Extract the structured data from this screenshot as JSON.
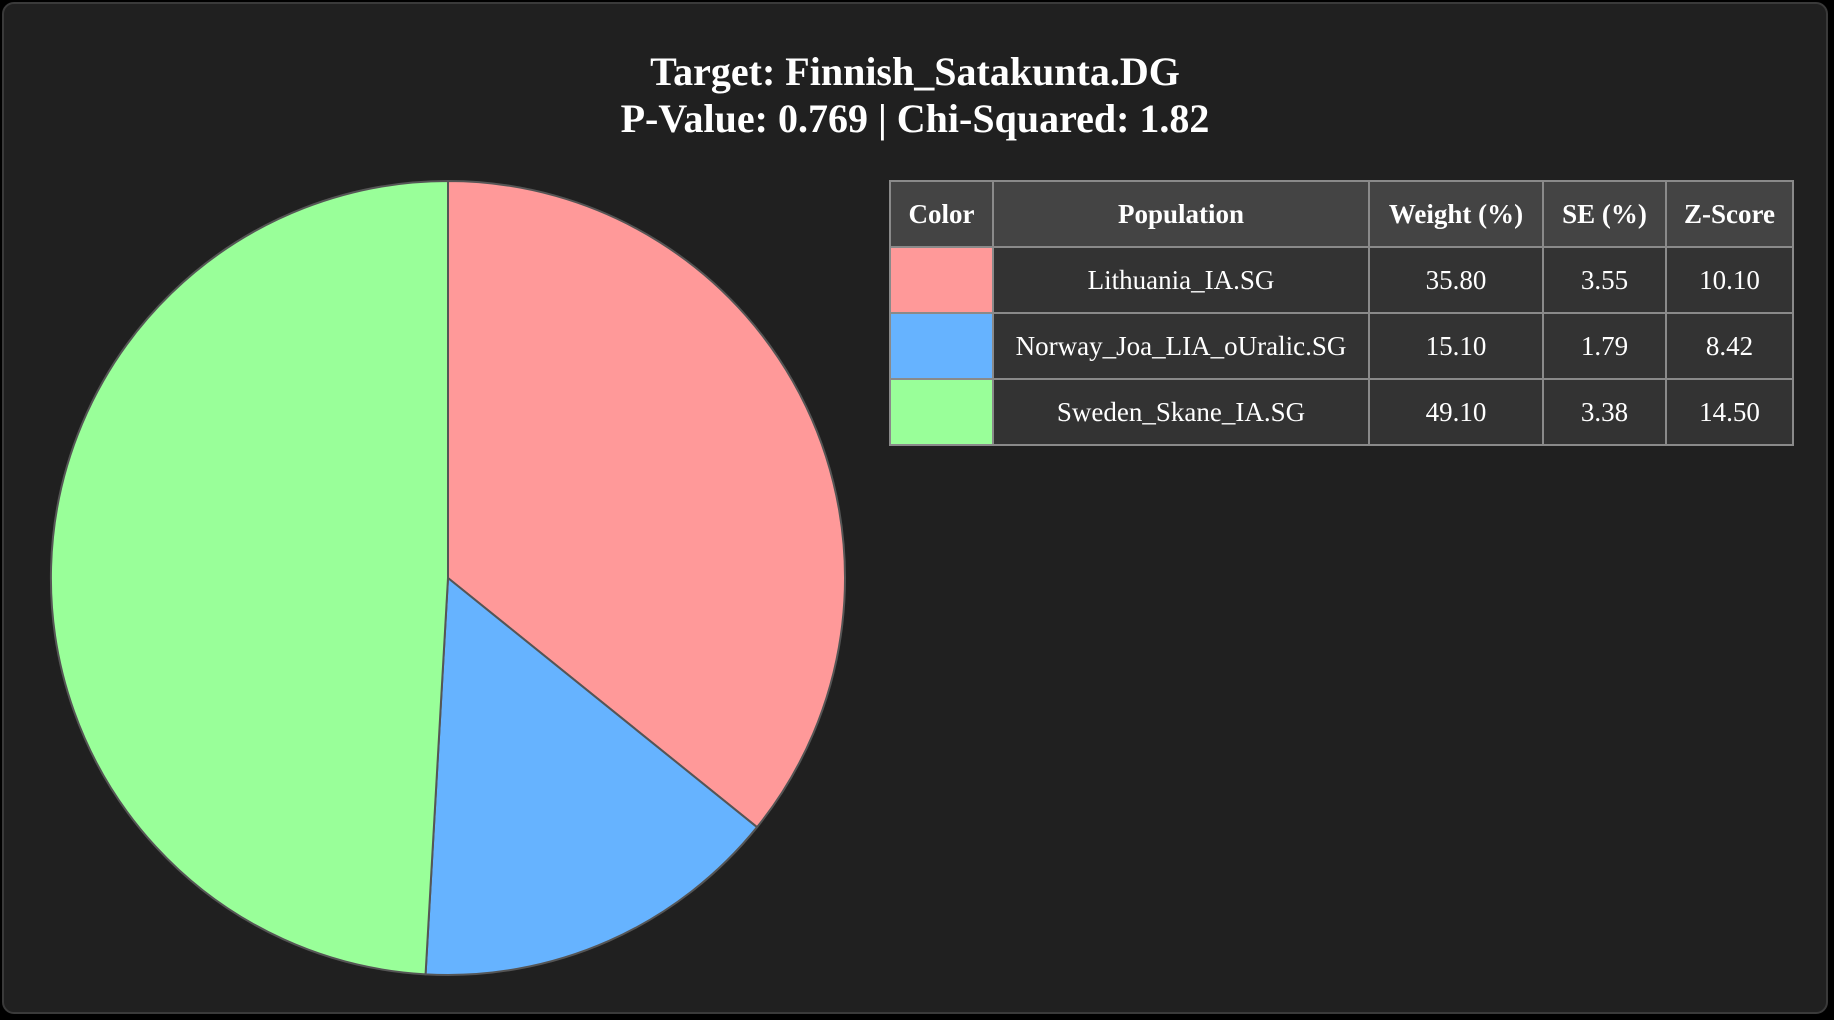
{
  "chart_data": {
    "type": "pie",
    "title": "Target: Finnish_Satakunta.DG",
    "subtitle": "P-Value: 0.769 | Chi-Squared: 1.82",
    "categories": [
      "Lithuania_IA.SG",
      "Norway_Joa_LIA_oUralic.SG",
      "Sweden_Skane_IA.SG"
    ],
    "values": [
      35.8,
      15.1,
      49.1
    ],
    "colors": [
      "#ff9999",
      "#66b3ff",
      "#99ff99"
    ],
    "start_angle": "top, clockwise"
  },
  "table": {
    "headers": {
      "color": "Color",
      "population": "Population",
      "weight": "Weight (%)",
      "se": "SE (%)",
      "z": "Z-Score"
    },
    "rows": [
      {
        "population": "Lithuania_IA.SG",
        "weight": "35.80",
        "se": "3.55",
        "z": "10.10",
        "color": "#ff9999"
      },
      {
        "population": "Norway_Joa_LIA_oUralic.SG",
        "weight": "15.10",
        "se": "1.79",
        "z": "8.42",
        "color": "#66b3ff"
      },
      {
        "population": "Sweden_Skane_IA.SG",
        "weight": "49.10",
        "se": "3.38",
        "z": "14.50",
        "color": "#99ff99"
      }
    ]
  }
}
